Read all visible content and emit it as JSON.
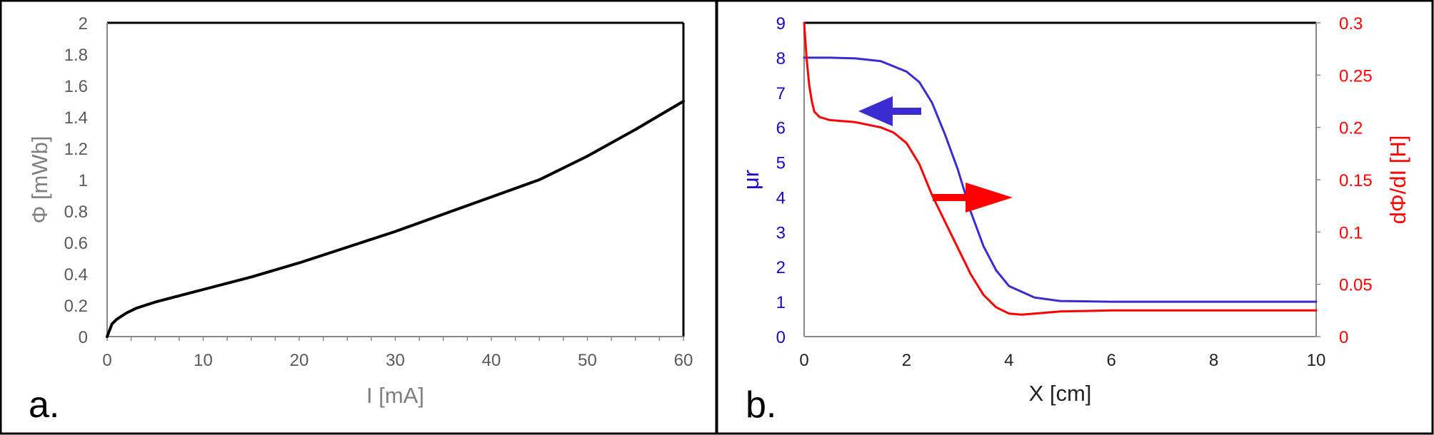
{
  "chart_data": [
    {
      "panel_label": "a.",
      "type": "line",
      "xlabel": "I [mA]",
      "ylabel": "Φ [mWb]",
      "xlim": [
        0,
        60
      ],
      "ylim": [
        0,
        2
      ],
      "x_ticks": [
        "0",
        "10",
        "20",
        "30",
        "40",
        "50",
        "60"
      ],
      "y_ticks": [
        "0",
        "0.2",
        "0.4",
        "0.6",
        "0.8",
        "1",
        "1.2",
        "1.4",
        "1.6",
        "1.8",
        "2"
      ],
      "grid": false,
      "series": [
        {
          "color": "#000000",
          "x": [
            0,
            0.5,
            1,
            2,
            3,
            5,
            10,
            15,
            20,
            25,
            30,
            35,
            40,
            45,
            50,
            55,
            60
          ],
          "y": [
            0,
            0.08,
            0.11,
            0.15,
            0.18,
            0.22,
            0.3,
            0.38,
            0.47,
            0.57,
            0.67,
            0.78,
            0.89,
            1.0,
            1.15,
            1.32,
            1.5
          ]
        }
      ]
    },
    {
      "panel_label": "b.",
      "type": "line",
      "xlabel": "X [cm]",
      "ylabel_left": "μr",
      "ylabel_right": "dΦ/dI [H]",
      "xlim": [
        0,
        10
      ],
      "ylim_left": [
        0,
        9
      ],
      "ylim_right": [
        0,
        0.3
      ],
      "x_ticks": [
        "0",
        "2",
        "4",
        "6",
        "8",
        "10"
      ],
      "y_ticks_left": [
        "0",
        "1",
        "2",
        "3",
        "4",
        "5",
        "6",
        "7",
        "8",
        "9"
      ],
      "y_ticks_right": [
        "0",
        "0.05",
        "0.1",
        "0.15",
        "0.2",
        "0.25",
        "0.3"
      ],
      "grid": false,
      "left_axis_color": "#2200cc",
      "right_axis_color": "#ff0000",
      "series": [
        {
          "axis": "left",
          "color": "#3a2bd0",
          "x": [
            0,
            0.5,
            1,
            1.5,
            2,
            2.25,
            2.5,
            2.75,
            3,
            3.25,
            3.5,
            3.75,
            4,
            4.5,
            5,
            6,
            8,
            10
          ],
          "y": [
            8,
            8,
            7.98,
            7.9,
            7.6,
            7.3,
            6.7,
            5.8,
            4.8,
            3.6,
            2.6,
            1.9,
            1.45,
            1.12,
            1.02,
            1.0,
            1.0,
            1.0
          ]
        },
        {
          "axis": "right",
          "color": "#ff0000",
          "x": [
            0,
            0.05,
            0.1,
            0.15,
            0.2,
            0.3,
            0.5,
            1,
            1.5,
            1.75,
            2,
            2.25,
            2.5,
            2.75,
            3,
            3.25,
            3.5,
            3.75,
            4,
            4.25,
            4.5,
            5,
            6,
            8,
            10
          ],
          "y": [
            0.3,
            0.265,
            0.24,
            0.225,
            0.215,
            0.21,
            0.207,
            0.205,
            0.2,
            0.195,
            0.185,
            0.165,
            0.135,
            0.11,
            0.085,
            0.06,
            0.04,
            0.028,
            0.022,
            0.021,
            0.022,
            0.024,
            0.025,
            0.025,
            0.025
          ]
        }
      ]
    }
  ]
}
